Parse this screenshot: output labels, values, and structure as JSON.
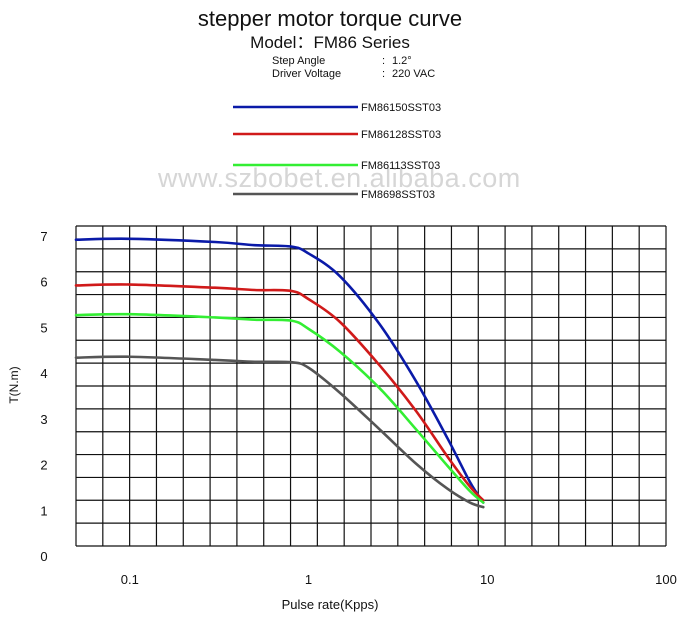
{
  "header": {
    "title": "stepper motor torque curve",
    "model": "Model：FM86 Series",
    "spec_rows": [
      {
        "label": "Step Angle",
        "sep": ":",
        "value": "1.2°"
      },
      {
        "label": "Driver  Voltage",
        "sep": ":",
        "value": "220 VAC"
      }
    ],
    "watermark": "www.szbobet.en.alibaba.com"
  },
  "chart_data": {
    "type": "line",
    "title": "stepper motor torque curve",
    "xlabel": "Pulse rate(Kpps)",
    "ylabel": "T(N.m)",
    "x_scale": "log",
    "xlim": [
      0.05,
      100
    ],
    "ylim": [
      0,
      7
    ],
    "x_ticks": [
      "0.1",
      "1",
      "10",
      "100"
    ],
    "x_tick_values": [
      0.1,
      1,
      10,
      100
    ],
    "y_ticks": [
      "0",
      "1",
      "2",
      "3",
      "4",
      "5",
      "6",
      "7"
    ],
    "y_tick_values": [
      0,
      1,
      2,
      3,
      4,
      5,
      6,
      7
    ],
    "grid": true,
    "legend_position": "top-center",
    "series": [
      {
        "name": "FM86150SST03",
        "color": "#0a1aa8",
        "x": [
          0.05,
          0.1,
          0.3,
          0.5,
          0.8,
          1.0,
          1.5,
          2.5,
          4.0,
          6.0,
          8.0,
          9.5
        ],
        "y": [
          6.7,
          6.72,
          6.65,
          6.58,
          6.55,
          6.4,
          5.9,
          4.85,
          3.6,
          2.35,
          1.4,
          0.95
        ]
      },
      {
        "name": "FM86128SST03",
        "color": "#d01a1a",
        "x": [
          0.05,
          0.1,
          0.3,
          0.5,
          0.8,
          1.0,
          1.5,
          2.5,
          4.0,
          6.0,
          8.0,
          9.5
        ],
        "y": [
          5.7,
          5.72,
          5.65,
          5.6,
          5.58,
          5.4,
          4.9,
          3.95,
          2.95,
          1.95,
          1.3,
          1.0
        ]
      },
      {
        "name": "FM86113SST03",
        "color": "#33ee33",
        "x": [
          0.05,
          0.1,
          0.3,
          0.5,
          0.8,
          1.0,
          1.5,
          2.5,
          4.0,
          6.0,
          8.0,
          9.5
        ],
        "y": [
          5.05,
          5.07,
          5.0,
          4.95,
          4.93,
          4.75,
          4.25,
          3.45,
          2.55,
          1.75,
          1.2,
          0.95
        ]
      },
      {
        "name": "FM8698SST03",
        "color": "#555555",
        "x": [
          0.05,
          0.1,
          0.3,
          0.5,
          0.8,
          1.0,
          1.5,
          2.5,
          4.0,
          6.0,
          8.0,
          9.5
        ],
        "y": [
          4.12,
          4.14,
          4.07,
          4.03,
          4.02,
          3.9,
          3.35,
          2.55,
          1.8,
          1.25,
          0.95,
          0.85
        ]
      }
    ]
  }
}
